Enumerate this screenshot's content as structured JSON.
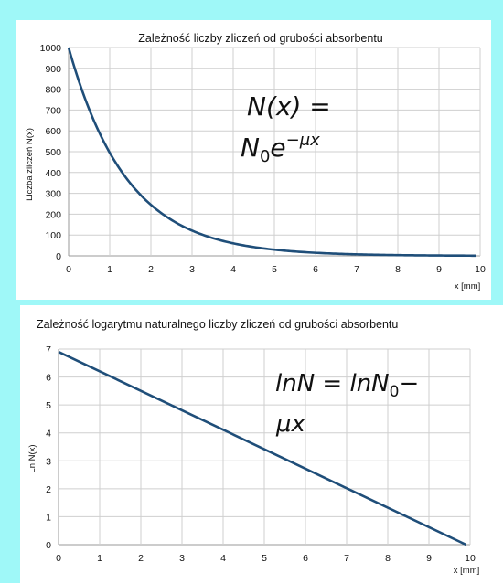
{
  "chart_data": [
    {
      "type": "line",
      "title": "Zależność liczby zliczeń od grubości absorbentu",
      "xlabel": "x [mm]",
      "ylabel": "Liczba zliczeń N(x)",
      "xlim": [
        0,
        10
      ],
      "ylim": [
        0,
        1000
      ],
      "x_ticks": [
        "0",
        "1",
        "2",
        "3",
        "4",
        "5",
        "6",
        "7",
        "8",
        "9",
        "10"
      ],
      "y_ticks": [
        "0",
        "100",
        "200",
        "300",
        "400",
        "500",
        "600",
        "700",
        "800",
        "900",
        "1000"
      ],
      "grid": true,
      "line_color": "#1f4e79",
      "formula": {
        "line1": "N(x) =",
        "base": "N",
        "sub": "0",
        "mid": "e",
        "sup": "−μx"
      },
      "series": [
        {
          "x": [
            0,
            0.5,
            1,
            1.5,
            2,
            2.5,
            3,
            3.5,
            4,
            4.5,
            5,
            5.5,
            6,
            6.5,
            7,
            7.5,
            8,
            8.5,
            9,
            9.5,
            9.9
          ],
          "values": [
            1000,
            703,
            495,
            348,
            245,
            172,
            121,
            85,
            60,
            42,
            30,
            21,
            15,
            10,
            7,
            5,
            4,
            3,
            2,
            1,
            1
          ]
        }
      ]
    },
    {
      "type": "line",
      "title": "Zależność logarytmu naturalnego liczby zliczeń od grubości absorbentu",
      "xlabel": "x [mm]",
      "ylabel": "Ln N(x)",
      "xlim": [
        0,
        10
      ],
      "ylim": [
        0,
        7
      ],
      "x_ticks": [
        "0",
        "1",
        "2",
        "3",
        "4",
        "5",
        "6",
        "7",
        "8",
        "9",
        "10"
      ],
      "y_ticks": [
        "0",
        "1",
        "2",
        "3",
        "4",
        "5",
        "6",
        "7"
      ],
      "grid": true,
      "line_color": "#1f4e79",
      "formula": {
        "line1a": "lnN = lnN",
        "sub": "0",
        "line1b": "−",
        "line2": "μx"
      },
      "series": [
        {
          "x": [
            0,
            9.9
          ],
          "values": [
            6.9,
            0
          ]
        }
      ]
    }
  ]
}
